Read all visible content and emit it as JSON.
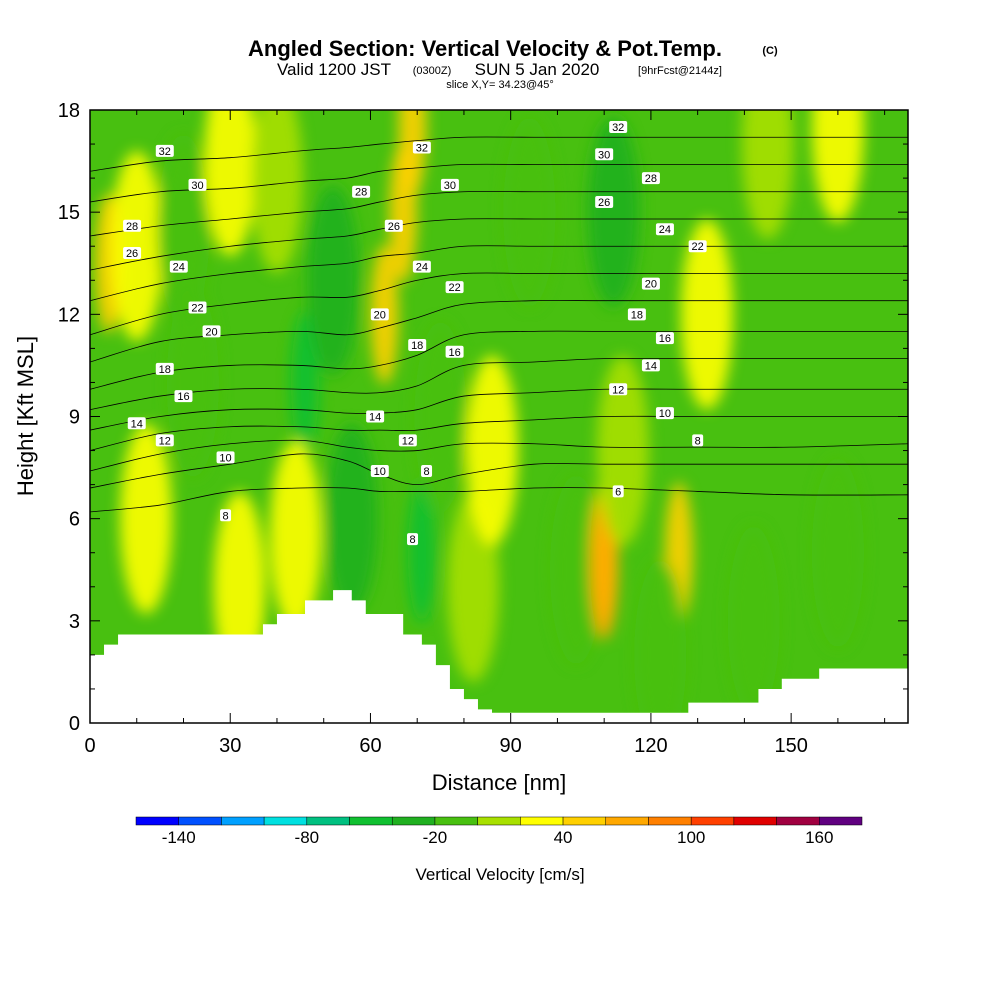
{
  "title": {
    "main": "Angled Section: Vertical Velocity & Pot.Temp.",
    "copyright": "(C)",
    "valid_prefix": "Valid 1200 JST",
    "valid_utc": "(0300Z)",
    "valid_date": "SUN 5 Jan 2020",
    "forecast": "[9hrFcst@2144z]",
    "slice": "slice X,Y= 34.23@45°"
  },
  "chart_data": {
    "type": "heatmap",
    "overlay": "contour",
    "xlabel": "Distance [nm]",
    "ylabel": "Height [Kft MSL]",
    "xlim": [
      0,
      175
    ],
    "ylim": [
      0,
      18
    ],
    "x_ticks": [
      0,
      30,
      60,
      90,
      120,
      150
    ],
    "y_ticks": [
      0,
      3,
      6,
      9,
      12,
      15,
      18
    ],
    "colorbar": {
      "title": "Vertical Velocity [cm/s]",
      "tick_labels": [
        "-140",
        "-80",
        "-20",
        "40",
        "100",
        "160"
      ],
      "tick_values": [
        -140,
        -80,
        -20,
        40,
        100,
        160
      ],
      "levels": [
        -160,
        -140,
        -120,
        -100,
        -80,
        -60,
        -40,
        -20,
        0,
        20,
        40,
        60,
        80,
        100,
        120,
        140,
        160,
        180
      ],
      "colors": [
        "#0000ff",
        "#0050ff",
        "#00a0ff",
        "#00e0e0",
        "#00c080",
        "#10c030",
        "#20b020",
        "#48c010",
        "#a8e000",
        "#ffff00",
        "#ffd000",
        "#ffa800",
        "#ff8000",
        "#ff4000",
        "#e00000",
        "#a00040",
        "#600080"
      ]
    },
    "background_value": -10,
    "velocity_blobs": [
      {
        "x": 4,
        "y": 13.5,
        "value": 40
      },
      {
        "x": 10,
        "y": 14,
        "value": 20
      },
      {
        "x": 20,
        "y": 14.5,
        "value": -20
      },
      {
        "x": 22,
        "y": 10,
        "value": -20
      },
      {
        "x": 12,
        "y": 6,
        "value": 20
      },
      {
        "x": 30,
        "y": 16.5,
        "value": 20
      },
      {
        "x": 32,
        "y": 4,
        "value": 20
      },
      {
        "x": 46,
        "y": 10,
        "value": -45
      },
      {
        "x": 52,
        "y": 13,
        "value": -25
      },
      {
        "x": 44,
        "y": 5.5,
        "value": 20
      },
      {
        "x": 40,
        "y": 16,
        "value": 15
      },
      {
        "x": 63,
        "y": 12,
        "value": 40
      },
      {
        "x": 67,
        "y": 15,
        "value": 45
      },
      {
        "x": 69,
        "y": 17.5,
        "value": 55
      },
      {
        "x": 71,
        "y": 5,
        "value": -55
      },
      {
        "x": 75,
        "y": 9,
        "value": -20
      },
      {
        "x": 56,
        "y": 6,
        "value": -25
      },
      {
        "x": 82,
        "y": 4,
        "value": 15
      },
      {
        "x": 86,
        "y": 8,
        "value": 20
      },
      {
        "x": 94,
        "y": 15,
        "value": -10
      },
      {
        "x": 104,
        "y": 4.5,
        "value": -20
      },
      {
        "x": 112,
        "y": 15,
        "value": -30
      },
      {
        "x": 110,
        "y": 5,
        "value": 45
      },
      {
        "x": 110,
        "y": 4.5,
        "value": 70
      },
      {
        "x": 114,
        "y": 8,
        "value": 15
      },
      {
        "x": 126,
        "y": 5,
        "value": 40
      },
      {
        "x": 122,
        "y": 2,
        "value": -15
      },
      {
        "x": 132,
        "y": 12,
        "value": 20
      },
      {
        "x": 145,
        "y": 17,
        "value": 15
      },
      {
        "x": 160,
        "y": 17.5,
        "value": 20
      },
      {
        "x": 142,
        "y": 3,
        "value": -10
      },
      {
        "x": 160,
        "y": 5,
        "value": -10
      }
    ],
    "theta_contours": [
      {
        "level": 6,
        "label": "6",
        "y": [
          6.2,
          6.4,
          6.8,
          6.9,
          6.9,
          6.8,
          6.8,
          6.8,
          6.9,
          6.9,
          6.8,
          6.7,
          6.7
        ]
      },
      {
        "level": 8,
        "label": "8",
        "y": [
          6.9,
          7.3,
          7.6,
          7.9,
          7.7,
          7.3,
          7.0,
          7.3,
          7.6,
          7.6,
          7.6,
          7.6,
          7.6
        ]
      },
      {
        "level": 10,
        "label": "10",
        "y": [
          7.4,
          7.9,
          8.2,
          8.3,
          8.1,
          8.0,
          8.0,
          8.2,
          8.2,
          8.1,
          8.1,
          8.1,
          8.2
        ]
      },
      {
        "level": 12,
        "label": "12",
        "y": [
          8.0,
          8.5,
          8.7,
          8.7,
          8.6,
          8.6,
          8.6,
          8.8,
          8.9,
          9.0,
          9.0,
          9.0,
          9.0
        ]
      },
      {
        "level": 14,
        "label": "14",
        "y": [
          8.6,
          9.0,
          9.2,
          9.2,
          9.1,
          9.1,
          9.2,
          9.6,
          9.7,
          9.8,
          9.8,
          9.8,
          9.8
        ]
      },
      {
        "level": 16,
        "label": "16",
        "y": [
          9.2,
          9.6,
          9.8,
          9.8,
          9.7,
          9.7,
          9.9,
          10.5,
          10.6,
          10.7,
          10.7,
          10.7,
          10.7
        ]
      },
      {
        "level": 18,
        "label": "18",
        "y": [
          9.8,
          10.3,
          10.5,
          10.5,
          10.4,
          10.5,
          10.8,
          11.4,
          11.5,
          11.5,
          11.5,
          11.5,
          11.5
        ]
      },
      {
        "level": 20,
        "label": "20",
        "y": [
          10.6,
          11.2,
          11.4,
          11.5,
          11.4,
          11.6,
          11.9,
          12.3,
          12.4,
          12.4,
          12.4,
          12.4,
          12.4
        ]
      },
      {
        "level": 22,
        "label": "22",
        "y": [
          11.4,
          12.0,
          12.3,
          12.5,
          12.5,
          12.7,
          13.0,
          13.2,
          13.2,
          13.2,
          13.2,
          13.2,
          13.2
        ]
      },
      {
        "level": 24,
        "label": "24",
        "y": [
          12.4,
          12.9,
          13.2,
          13.4,
          13.5,
          13.7,
          13.8,
          14.0,
          14.0,
          14.0,
          14.0,
          14.0,
          14.0
        ]
      },
      {
        "level": 26,
        "label": "26",
        "y": [
          13.3,
          13.7,
          14.0,
          14.2,
          14.3,
          14.5,
          14.7,
          14.8,
          14.8,
          14.8,
          14.8,
          14.8,
          14.8
        ]
      },
      {
        "level": 28,
        "label": "28",
        "y": [
          14.3,
          14.6,
          14.8,
          15.0,
          15.1,
          15.3,
          15.5,
          15.6,
          15.6,
          15.6,
          15.6,
          15.6,
          15.6
        ]
      },
      {
        "level": 30,
        "label": "30",
        "y": [
          15.3,
          15.6,
          15.7,
          15.9,
          16.0,
          16.2,
          16.3,
          16.4,
          16.4,
          16.4,
          16.4,
          16.4,
          16.4
        ]
      },
      {
        "level": 32,
        "label": "32",
        "y": [
          16.2,
          16.5,
          16.6,
          16.8,
          16.9,
          17.0,
          17.1,
          17.2,
          17.2,
          17.2,
          17.2,
          17.2,
          17.2
        ]
      }
    ],
    "contour_x": [
      0,
      15,
      30,
      45,
      55,
      62,
      70,
      80,
      95,
      110,
      130,
      150,
      175
    ],
    "contour_labels": [
      {
        "text": "32",
        "x": 16,
        "y": 16.8
      },
      {
        "text": "30",
        "x": 23,
        "y": 15.8
      },
      {
        "text": "28",
        "x": 9,
        "y": 14.6
      },
      {
        "text": "26",
        "x": 9,
        "y": 13.8
      },
      {
        "text": "24",
        "x": 19,
        "y": 13.4
      },
      {
        "text": "22",
        "x": 23,
        "y": 12.2
      },
      {
        "text": "20",
        "x": 26,
        "y": 11.5
      },
      {
        "text": "18",
        "x": 16,
        "y": 10.4
      },
      {
        "text": "16",
        "x": 20,
        "y": 9.6
      },
      {
        "text": "14",
        "x": 10,
        "y": 8.8
      },
      {
        "text": "12",
        "x": 16,
        "y": 8.3
      },
      {
        "text": "10",
        "x": 29,
        "y": 7.8
      },
      {
        "text": "8",
        "x": 29,
        "y": 6.1
      },
      {
        "text": "32",
        "x": 71,
        "y": 16.9
      },
      {
        "text": "30",
        "x": 77,
        "y": 15.8
      },
      {
        "text": "28",
        "x": 58,
        "y": 15.6
      },
      {
        "text": "26",
        "x": 65,
        "y": 14.6
      },
      {
        "text": "24",
        "x": 71,
        "y": 13.4
      },
      {
        "text": "22",
        "x": 78,
        "y": 12.8
      },
      {
        "text": "20",
        "x": 62,
        "y": 12.0
      },
      {
        "text": "18",
        "x": 70,
        "y": 11.1
      },
      {
        "text": "16",
        "x": 78,
        "y": 10.9
      },
      {
        "text": "14",
        "x": 61,
        "y": 9.0
      },
      {
        "text": "12",
        "x": 68,
        "y": 8.3
      },
      {
        "text": "10",
        "x": 62,
        "y": 7.4
      },
      {
        "text": "8",
        "x": 72,
        "y": 7.4
      },
      {
        "text": "8",
        "x": 69,
        "y": 5.4
      },
      {
        "text": "32",
        "x": 113,
        "y": 17.5
      },
      {
        "text": "30",
        "x": 110,
        "y": 16.7
      },
      {
        "text": "28",
        "x": 120,
        "y": 16.0
      },
      {
        "text": "26",
        "x": 110,
        "y": 15.3
      },
      {
        "text": "24",
        "x": 123,
        "y": 14.5
      },
      {
        "text": "22",
        "x": 130,
        "y": 14.0
      },
      {
        "text": "20",
        "x": 120,
        "y": 12.9
      },
      {
        "text": "18",
        "x": 117,
        "y": 12.0
      },
      {
        "text": "16",
        "x": 123,
        "y": 11.3
      },
      {
        "text": "14",
        "x": 120,
        "y": 10.5
      },
      {
        "text": "12",
        "x": 113,
        "y": 9.8
      },
      {
        "text": "10",
        "x": 123,
        "y": 9.1
      },
      {
        "text": "8",
        "x": 130,
        "y": 8.3
      },
      {
        "text": "6",
        "x": 113,
        "y": 6.8
      }
    ],
    "terrain": {
      "x": [
        0,
        3,
        3,
        6,
        6,
        37,
        37,
        40,
        40,
        46,
        46,
        50,
        50,
        52,
        52,
        56,
        56,
        59,
        59,
        61,
        61,
        64,
        64,
        67,
        67,
        71,
        71,
        74,
        74,
        77,
        77,
        80,
        80,
        83,
        83,
        86,
        86,
        89,
        89,
        94,
        94,
        128,
        128,
        143,
        143,
        148,
        148,
        156,
        156,
        175
      ],
      "y": [
        2.0,
        2.0,
        2.3,
        2.3,
        2.6,
        2.6,
        2.9,
        2.9,
        3.2,
        3.2,
        3.6,
        3.6,
        3.6,
        3.6,
        3.9,
        3.9,
        3.6,
        3.6,
        3.2,
        3.2,
        3.2,
        3.2,
        3.2,
        3.2,
        2.6,
        2.6,
        2.3,
        2.3,
        1.7,
        1.7,
        1.0,
        1.0,
        0.7,
        0.7,
        0.4,
        0.4,
        0.3,
        0.3,
        0.3,
        0.3,
        0.3,
        0.3,
        0.6,
        0.6,
        1.0,
        1.0,
        1.3,
        1.3,
        1.6,
        1.6
      ]
    }
  }
}
